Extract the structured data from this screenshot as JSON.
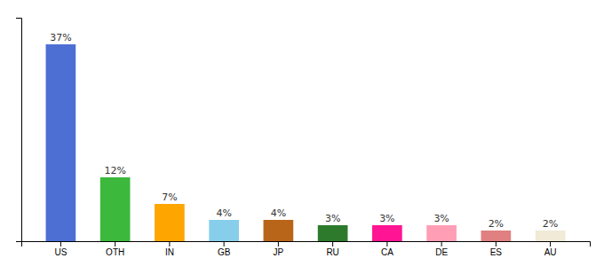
{
  "chart_data": {
    "type": "bar",
    "categories": [
      "US",
      "OTH",
      "IN",
      "GB",
      "JP",
      "RU",
      "CA",
      "DE",
      "ES",
      "AU"
    ],
    "values": [
      37,
      12,
      7,
      4,
      4,
      3,
      3,
      3,
      2,
      2
    ],
    "value_labels": [
      "37%",
      "12%",
      "7%",
      "4%",
      "4%",
      "3%",
      "3%",
      "3%",
      "2%",
      "2%"
    ],
    "colors": [
      "#4d6fd4",
      "#3cb83c",
      "#ffa500",
      "#87ceeb",
      "#b8651a",
      "#2d7a2d",
      "#ff1493",
      "#ff9eb5",
      "#e08080",
      "#f0ead6"
    ],
    "ylim": [
      0,
      42
    ],
    "data_labels": true,
    "tick_labels": "x",
    "grid": false
  }
}
